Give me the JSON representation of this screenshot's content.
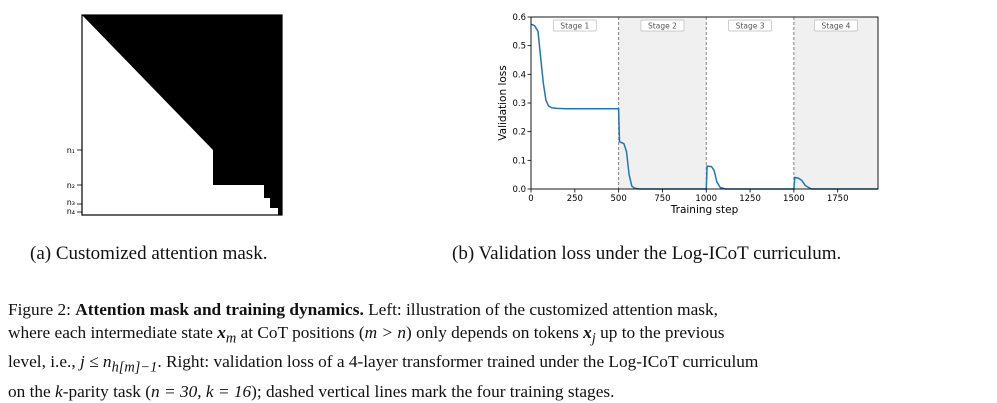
{
  "mask_panel": {
    "tick_labels": [
      "n₁",
      "n₂",
      "n₃",
      "n₄"
    ],
    "caption": "(a) Customized attention mask."
  },
  "chart_panel": {
    "caption": "(b) Validation loss under the Log-ICoT curriculum."
  },
  "chart_data": {
    "type": "line",
    "xlabel": "Training step",
    "ylabel": "Validation loss",
    "xlim": [
      0,
      1980
    ],
    "ylim": [
      0,
      0.6
    ],
    "xticks": [
      0,
      250,
      500,
      750,
      1000,
      1250,
      1500,
      1750
    ],
    "yticks": [
      0.0,
      0.1,
      0.2,
      0.3,
      0.4,
      0.5,
      0.6
    ],
    "grid": false,
    "series_color": "#1f77b4",
    "stage_boundaries": [
      500,
      1000,
      1500
    ],
    "stages": [
      {
        "label": "Stage 1",
        "start": 0,
        "end": 500,
        "shaded": false
      },
      {
        "label": "Stage 2",
        "start": 500,
        "end": 1000,
        "shaded": true
      },
      {
        "label": "Stage 3",
        "start": 1000,
        "end": 1500,
        "shaded": false
      },
      {
        "label": "Stage 4",
        "start": 1500,
        "end": 1980,
        "shaded": true
      }
    ],
    "series": [
      {
        "x": [
          0,
          20,
          40,
          55,
          70,
          85,
          100,
          120,
          150,
          200,
          300,
          400,
          490,
          500,
          505,
          530,
          545,
          560,
          575,
          590,
          620,
          700,
          800,
          900,
          995,
          1000,
          1005,
          1030,
          1045,
          1060,
          1080,
          1110,
          1200,
          1400,
          1495,
          1500,
          1505,
          1525,
          1545,
          1565,
          1600,
          1700,
          1980
        ],
        "y": [
          0.575,
          0.57,
          0.55,
          0.46,
          0.37,
          0.31,
          0.29,
          0.283,
          0.281,
          0.28,
          0.28,
          0.28,
          0.28,
          0.28,
          0.165,
          0.158,
          0.13,
          0.05,
          0.01,
          0.003,
          0.0,
          0.0,
          0.0,
          0.0,
          0.0,
          0.0,
          0.08,
          0.078,
          0.065,
          0.025,
          0.005,
          0.0,
          0.0,
          0.0,
          0.0,
          0.0,
          0.04,
          0.038,
          0.03,
          0.012,
          0.0,
          0.0,
          0.0
        ]
      }
    ]
  },
  "figure_caption": {
    "label": "Figure 2:",
    "title": "Attention mask and training dynamics.",
    "line1_text": "Left: illustration of the customized attention mask,",
    "line2_a": "where each intermediate state",
    "line2_var": "x",
    "line2_sub": "m",
    "line2_b": "at CoT positions (",
    "line2_cond": "m > n",
    "line2_c": ") only depends on tokens",
    "line2_var2": "x",
    "line2_sub2": "j",
    "line2_d": "up to the previous",
    "line3_a": "level, i.e.,",
    "line3_math": "j ≤ n",
    "line3_sub": "h[m]−1",
    "line3_b": ". Right: validation loss of a 4-layer transformer trained under the Log-ICoT curriculum",
    "line4_a": "on the",
    "line4_k": "k",
    "line4_b": "-parity task (",
    "line4_params": "n = 30, k = 16",
    "line4_c": "); dashed vertical lines mark the four training stages."
  }
}
